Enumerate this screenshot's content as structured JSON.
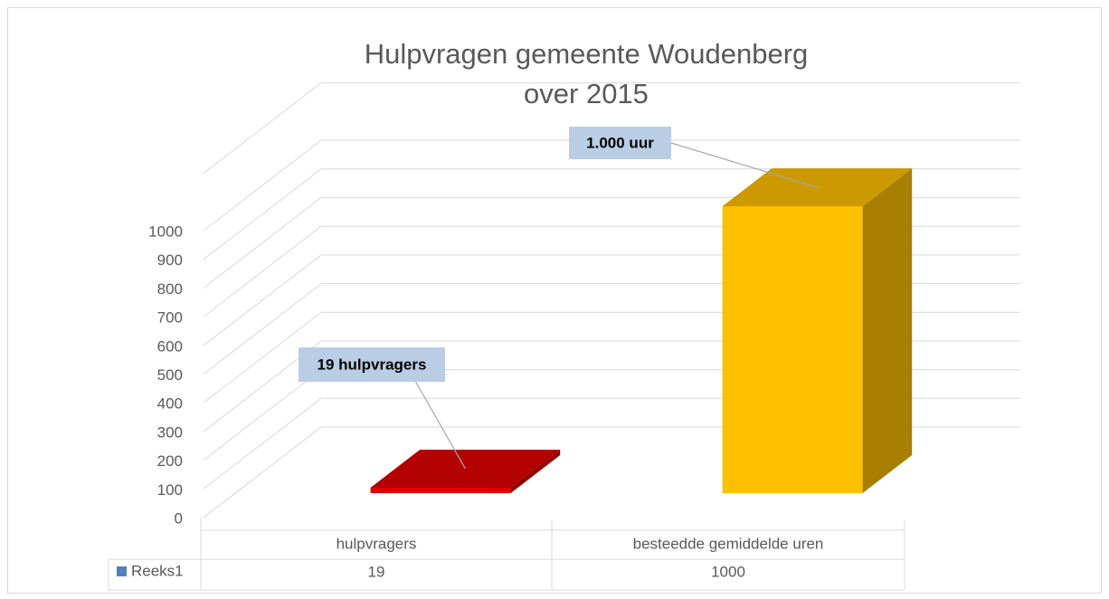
{
  "chart_data": {
    "type": "bar3d",
    "title": "Hulpvragen gemeente Woudenberg over 2015",
    "categories": [
      "hulpvragers",
      "besteedde gemiddelde uren"
    ],
    "series": [
      {
        "name": "Reeks1",
        "color": "#4f81bd",
        "values": [
          19,
          1000
        ],
        "value_labels": [
          "19 hulpvragers",
          "1.000 uur"
        ],
        "point_colors": [
          "#e00000",
          "#ffc000"
        ]
      }
    ],
    "ylim": [
      0,
      1200
    ],
    "yticks": [
      0,
      100,
      200,
      300,
      400,
      500,
      600,
      700,
      800,
      900,
      1000
    ],
    "grid": true
  }
}
